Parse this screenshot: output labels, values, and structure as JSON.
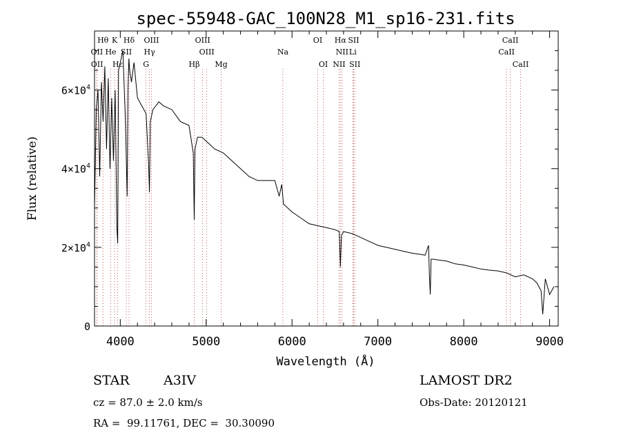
{
  "chart_data": {
    "type": "line",
    "title": "spec-55948-GAC_100N28_M1_sp16-231.fits",
    "xlabel": "Wavelength (Å)",
    "ylabel": "Flux (relative)",
    "xlim": [
      3700,
      9100
    ],
    "ylim": [
      0,
      75000
    ],
    "x_ticks": [
      4000,
      5000,
      6000,
      7000,
      8000,
      9000
    ],
    "y_ticks": [
      {
        "value": 0,
        "mantissa": "0",
        "exponent": ""
      },
      {
        "value": 20000,
        "mantissa": "2×10",
        "exponent": "4"
      },
      {
        "value": 40000,
        "mantissa": "4×10",
        "exponent": "4"
      },
      {
        "value": 60000,
        "mantissa": "6×10",
        "exponent": "4"
      }
    ],
    "grid": false,
    "series": [
      {
        "x": [
          3700,
          3720,
          3740,
          3760,
          3780,
          3800,
          3820,
          3840,
          3860,
          3880,
          3900,
          3920,
          3940,
          3960,
          3970,
          3980,
          4000,
          4030,
          4060,
          4080,
          4090,
          4100,
          4110,
          4130,
          4160,
          4200,
          4250,
          4300,
          4330,
          4340,
          4350,
          4380,
          4450,
          4500,
          4600,
          4700,
          4800,
          4850,
          4861,
          4870,
          4900,
          4950,
          5000,
          5100,
          5200,
          5300,
          5400,
          5500,
          5600,
          5700,
          5800,
          5850,
          5880,
          5900,
          5950,
          6000,
          6100,
          6200,
          6300,
          6400,
          6500,
          6550,
          6563,
          6575,
          6600,
          6700,
          6800,
          6900,
          7000,
          7100,
          7200,
          7300,
          7400,
          7500,
          7550,
          7590,
          7600,
          7610,
          7620,
          7640,
          7700,
          7800,
          7900,
          8000,
          8100,
          8200,
          8300,
          8400,
          8500,
          8600,
          8700,
          8800,
          8850,
          8900,
          8920,
          8950,
          9000,
          9050
        ],
        "y": [
          30000,
          55000,
          60000,
          38000,
          62000,
          52000,
          66000,
          45000,
          63000,
          40000,
          58000,
          42000,
          60000,
          25000,
          21000,
          65000,
          67000,
          70000,
          52000,
          33000,
          60000,
          68000,
          65000,
          62000,
          67000,
          58000,
          56000,
          54000,
          41000,
          34000,
          52000,
          55000,
          57000,
          56000,
          55000,
          52000,
          51000,
          44000,
          27000,
          45000,
          48000,
          48000,
          47000,
          45000,
          44000,
          42000,
          40000,
          38000,
          37000,
          37000,
          37000,
          33000,
          36000,
          31000,
          30000,
          29000,
          27500,
          26000,
          25500,
          25000,
          24500,
          24000,
          15000,
          23000,
          24000,
          23500,
          22500,
          21500,
          20500,
          20000,
          19500,
          19000,
          18500,
          18200,
          18000,
          20500,
          13000,
          8000,
          17000,
          17000,
          16800,
          16500,
          15800,
          15500,
          15000,
          14500,
          14200,
          14000,
          13500,
          12500,
          13000,
          12000,
          11000,
          9000,
          3000,
          12000,
          8000,
          10000
        ]
      }
    ],
    "line_markers": [
      {
        "label": "Hθ",
        "x": 3798,
        "row": 1
      },
      {
        "label": "K",
        "x": 3934,
        "row": 1
      },
      {
        "label": "Hδ",
        "x": 4102,
        "row": 1
      },
      {
        "label": "OIII",
        "x": 4363,
        "row": 1
      },
      {
        "label": "OIII",
        "x": 4959,
        "row": 1
      },
      {
        "label": "OI",
        "x": 6300,
        "row": 1
      },
      {
        "label": "Hα",
        "x": 6563,
        "row": 1
      },
      {
        "label": "SII",
        "x": 6717,
        "row": 1
      },
      {
        "label": "CaII",
        "x": 8542,
        "row": 1
      },
      {
        "label": "OII",
        "x": 3727,
        "row": 2
      },
      {
        "label": "He",
        "x": 3889,
        "row": 2
      },
      {
        "label": "SII",
        "x": 4070,
        "row": 2
      },
      {
        "label": "Hγ",
        "x": 4340,
        "row": 2
      },
      {
        "label": "OIII",
        "x": 5007,
        "row": 2
      },
      {
        "label": "Na",
        "x": 5893,
        "row": 2
      },
      {
        "label": "NII",
        "x": 6583,
        "row": 2
      },
      {
        "label": "Li",
        "x": 6708,
        "row": 2
      },
      {
        "label": "CaII",
        "x": 8498,
        "row": 2
      },
      {
        "label": "OII",
        "x": 3729,
        "row": 3
      },
      {
        "label": "Hε",
        "x": 3970,
        "row": 3
      },
      {
        "label": "G",
        "x": 4300,
        "row": 3
      },
      {
        "label": "Hβ",
        "x": 4861,
        "row": 3
      },
      {
        "label": "Mg",
        "x": 5175,
        "row": 3
      },
      {
        "label": "OI",
        "x": 6364,
        "row": 3
      },
      {
        "label": "NII",
        "x": 6548,
        "row": 3
      },
      {
        "label": "SII",
        "x": 6731,
        "row": 3
      },
      {
        "label": "CaII",
        "x": 8662,
        "row": 3
      }
    ]
  },
  "info": {
    "object_type": "STAR",
    "subclass": "A3IV",
    "survey": "LAMOST DR2",
    "cz": "cz = 87.0 ± 2.0 km/s",
    "obs_date": "Obs-Date: 20120121",
    "coords": "RA =  99.11761, DEC =  30.30090"
  }
}
